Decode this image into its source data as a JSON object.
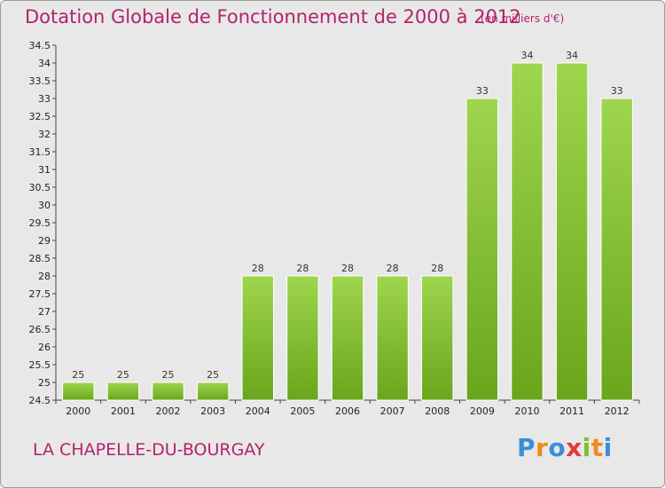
{
  "chart_data": {
    "type": "bar",
    "title": "Dotation Globale de Fonctionnement de 2000 à 2012",
    "subtitle": "(en milliers d'€)",
    "categories": [
      "2000",
      "2001",
      "2002",
      "2003",
      "2004",
      "2005",
      "2006",
      "2007",
      "2008",
      "2009",
      "2010",
      "2011",
      "2012"
    ],
    "values": [
      25,
      25,
      25,
      25,
      28,
      28,
      28,
      28,
      28,
      33,
      34,
      34,
      33
    ],
    "ylim": [
      24.5,
      34.5
    ],
    "yticks": [
      24.5,
      25,
      25.5,
      26,
      26.5,
      27,
      27.5,
      28,
      28.5,
      29,
      29.5,
      30,
      30.5,
      31,
      31.5,
      32,
      32.5,
      33,
      33.5,
      34,
      34.5
    ],
    "grid": false,
    "bar_color": "#7cc22a",
    "bar_color_top": "#9ed64e"
  },
  "footer": {
    "commune": "LA CHAPELLE-DU-BOURGAY",
    "logo_letters": [
      "P",
      "r",
      "o",
      "x",
      "i",
      "t",
      "i"
    ],
    "logo_colors": [
      "#3a8fd6",
      "#f08a1c",
      "#3a8fd6",
      "#e23b3b",
      "#7cc22a",
      "#f08a1c",
      "#3a8fd6"
    ]
  },
  "colors": {
    "title": "#b5226a",
    "background": "#e8e8e8"
  }
}
